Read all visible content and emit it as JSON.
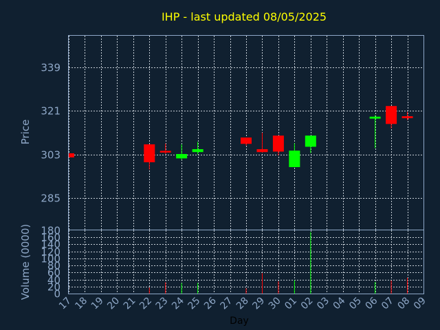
{
  "chart_data": {
    "type": "candlestick",
    "title": "IHP - last updated 08/05/2025",
    "xlabel": "Day",
    "ylabel_price": "Price",
    "ylabel_volume": "Volume (0000)",
    "categories": [
      "17",
      "18",
      "19",
      "20",
      "21",
      "22",
      "23",
      "24",
      "25",
      "26",
      "27",
      "28",
      "29",
      "30",
      "01",
      "02",
      "03",
      "04",
      "05",
      "06",
      "07",
      "08",
      "09"
    ],
    "price_ylim": [
      272,
      352
    ],
    "price_ticks": [
      285,
      303,
      321,
      339
    ],
    "volume_ylim": [
      0,
      180
    ],
    "volume_ticks": [
      0,
      20,
      40,
      60,
      80,
      100,
      120,
      140,
      160,
      180
    ],
    "up_color": "#00ff00",
    "down_color": "#ff0000",
    "candles": [
      {
        "day": "17",
        "open": 303.5,
        "high": 303.5,
        "low": 301.8,
        "close": 301.8
      },
      {
        "day": "22",
        "open": 307.2,
        "high": 307.2,
        "low": 296.8,
        "close": 299.8
      },
      {
        "day": "23",
        "open": 304.5,
        "high": 307.5,
        "low": 303.2,
        "close": 303.8
      },
      {
        "day": "24",
        "open": 301.4,
        "high": 307.2,
        "low": 300.8,
        "close": 303.2
      },
      {
        "day": "25",
        "open": 304.0,
        "high": 308.2,
        "low": 303.0,
        "close": 305.2
      },
      {
        "day": "28",
        "open": 310.0,
        "high": 310.0,
        "low": 306.6,
        "close": 307.4
      },
      {
        "day": "29",
        "open": 305.2,
        "high": 312.0,
        "low": 303.8,
        "close": 304.0
      },
      {
        "day": "30",
        "open": 310.8,
        "high": 310.8,
        "low": 302.6,
        "close": 304.2
      },
      {
        "day": "01",
        "open": 297.8,
        "high": 307.6,
        "low": 297.8,
        "close": 304.6
      },
      {
        "day": "02",
        "open": 306.2,
        "high": 310.8,
        "low": 303.6,
        "close": 310.8
      },
      {
        "day": "06",
        "open": 317.8,
        "high": 319.2,
        "low": 305.6,
        "close": 318.6
      },
      {
        "day": "07",
        "open": 323.0,
        "high": 323.0,
        "low": 313.8,
        "close": 315.6
      },
      {
        "day": "08",
        "open": 318.8,
        "high": 320.6,
        "low": 317.2,
        "close": 318.0
      }
    ],
    "volume": [
      {
        "day": "17",
        "value": 0
      },
      {
        "day": "22",
        "value": 17
      },
      {
        "day": "23",
        "value": 32
      },
      {
        "day": "24",
        "value": 30
      },
      {
        "day": "25",
        "value": 30
      },
      {
        "day": "28",
        "value": 15
      },
      {
        "day": "29",
        "value": 58
      },
      {
        "day": "30",
        "value": 35
      },
      {
        "day": "01",
        "value": 38
      },
      {
        "day": "02",
        "value": 175
      },
      {
        "day": "06",
        "value": 33
      },
      {
        "day": "07",
        "value": 37
      },
      {
        "day": "08",
        "value": 45
      }
    ]
  }
}
